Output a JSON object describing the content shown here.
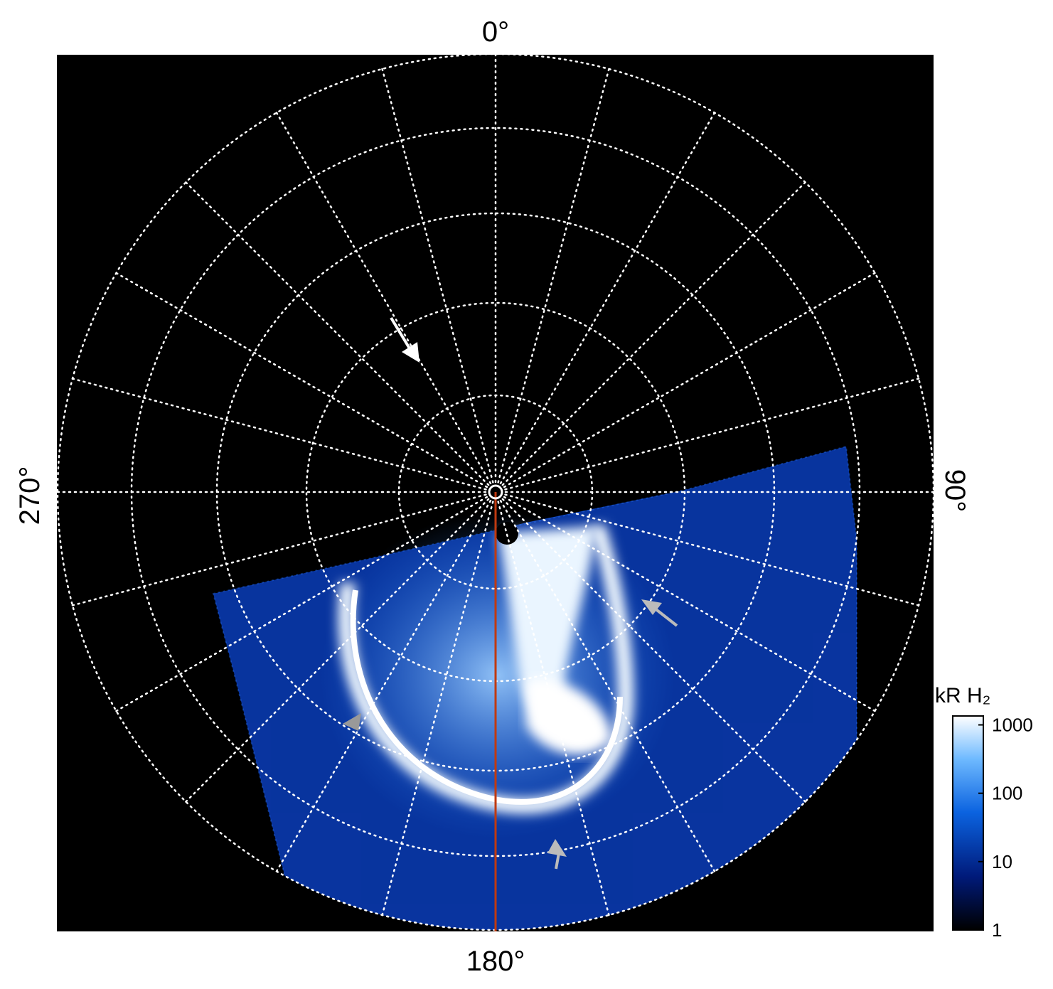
{
  "labels": {
    "top": "0°",
    "right": "90°",
    "bottom": "180°",
    "left": "270°"
  },
  "colorbar": {
    "title": "kR H₂",
    "ticks": [
      1,
      10,
      100,
      1000
    ],
    "lim": [
      1,
      1350
    ],
    "log": true
  }
}
